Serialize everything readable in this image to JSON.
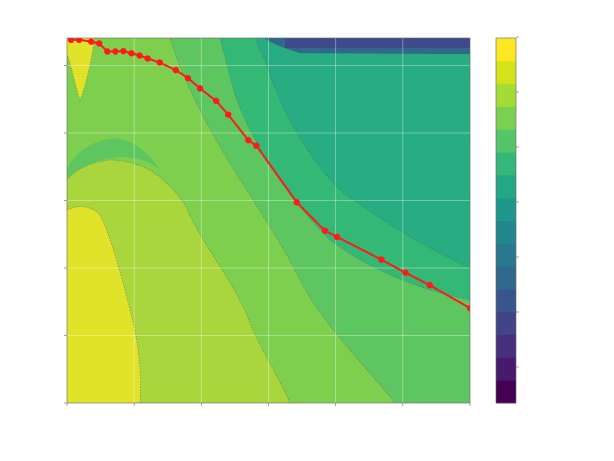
{
  "chart_data": {
    "type": "contour",
    "title": "",
    "xlabel": "",
    "ylabel": "",
    "colorbar_label": "",
    "colormap": "viridis",
    "colorbar_colors": [
      "#440154",
      "#481a6c",
      "#472f7d",
      "#414487",
      "#39568c",
      "#31688e",
      "#2a788e",
      "#23888e",
      "#1f988b",
      "#22a884",
      "#35b779",
      "#54c568",
      "#7ad151",
      "#a5db36",
      "#d2e21b",
      "#fde725"
    ],
    "region_colors": {
      "far_left_yellow": "#e1e32b",
      "yellow_green": "#a9d63c",
      "light_green": "#7fcf4f",
      "green": "#5ec660",
      "teal_green": "#33b876",
      "teal": "#27ad81",
      "blue_band": "#31688e",
      "dark_band": "#3f4a8a"
    },
    "line_series": {
      "color": "#ff1a1a",
      "marker": "circle",
      "points": [
        [
          0.01,
          0.995
        ],
        [
          0.03,
          0.995
        ],
        [
          0.06,
          0.99
        ],
        [
          0.08,
          0.985
        ],
        [
          0.1,
          0.963
        ],
        [
          0.12,
          0.963
        ],
        [
          0.14,
          0.964
        ],
        [
          0.16,
          0.958
        ],
        [
          0.18,
          0.952
        ],
        [
          0.2,
          0.944
        ],
        [
          0.23,
          0.933
        ],
        [
          0.27,
          0.912
        ],
        [
          0.3,
          0.89
        ],
        [
          0.33,
          0.862
        ],
        [
          0.37,
          0.828
        ],
        [
          0.4,
          0.79
        ],
        [
          0.45,
          0.72
        ],
        [
          0.47,
          0.705
        ],
        [
          0.57,
          0.55
        ],
        [
          0.64,
          0.472
        ],
        [
          0.67,
          0.455
        ],
        [
          0.78,
          0.393
        ],
        [
          0.84,
          0.357
        ],
        [
          0.9,
          0.323
        ],
        [
          1.0,
          0.26
        ]
      ]
    },
    "xlim": [
      0,
      1
    ],
    "ylim": [
      0,
      1
    ],
    "x_ticks": [
      "",
      "",
      "",
      "",
      "",
      "",
      ""
    ],
    "y_ticks": [
      "",
      "",
      "",
      "",
      "",
      ""
    ],
    "colorbar_ticks": [
      "",
      "",
      "",
      "",
      "",
      "",
      ""
    ],
    "grid": true
  }
}
